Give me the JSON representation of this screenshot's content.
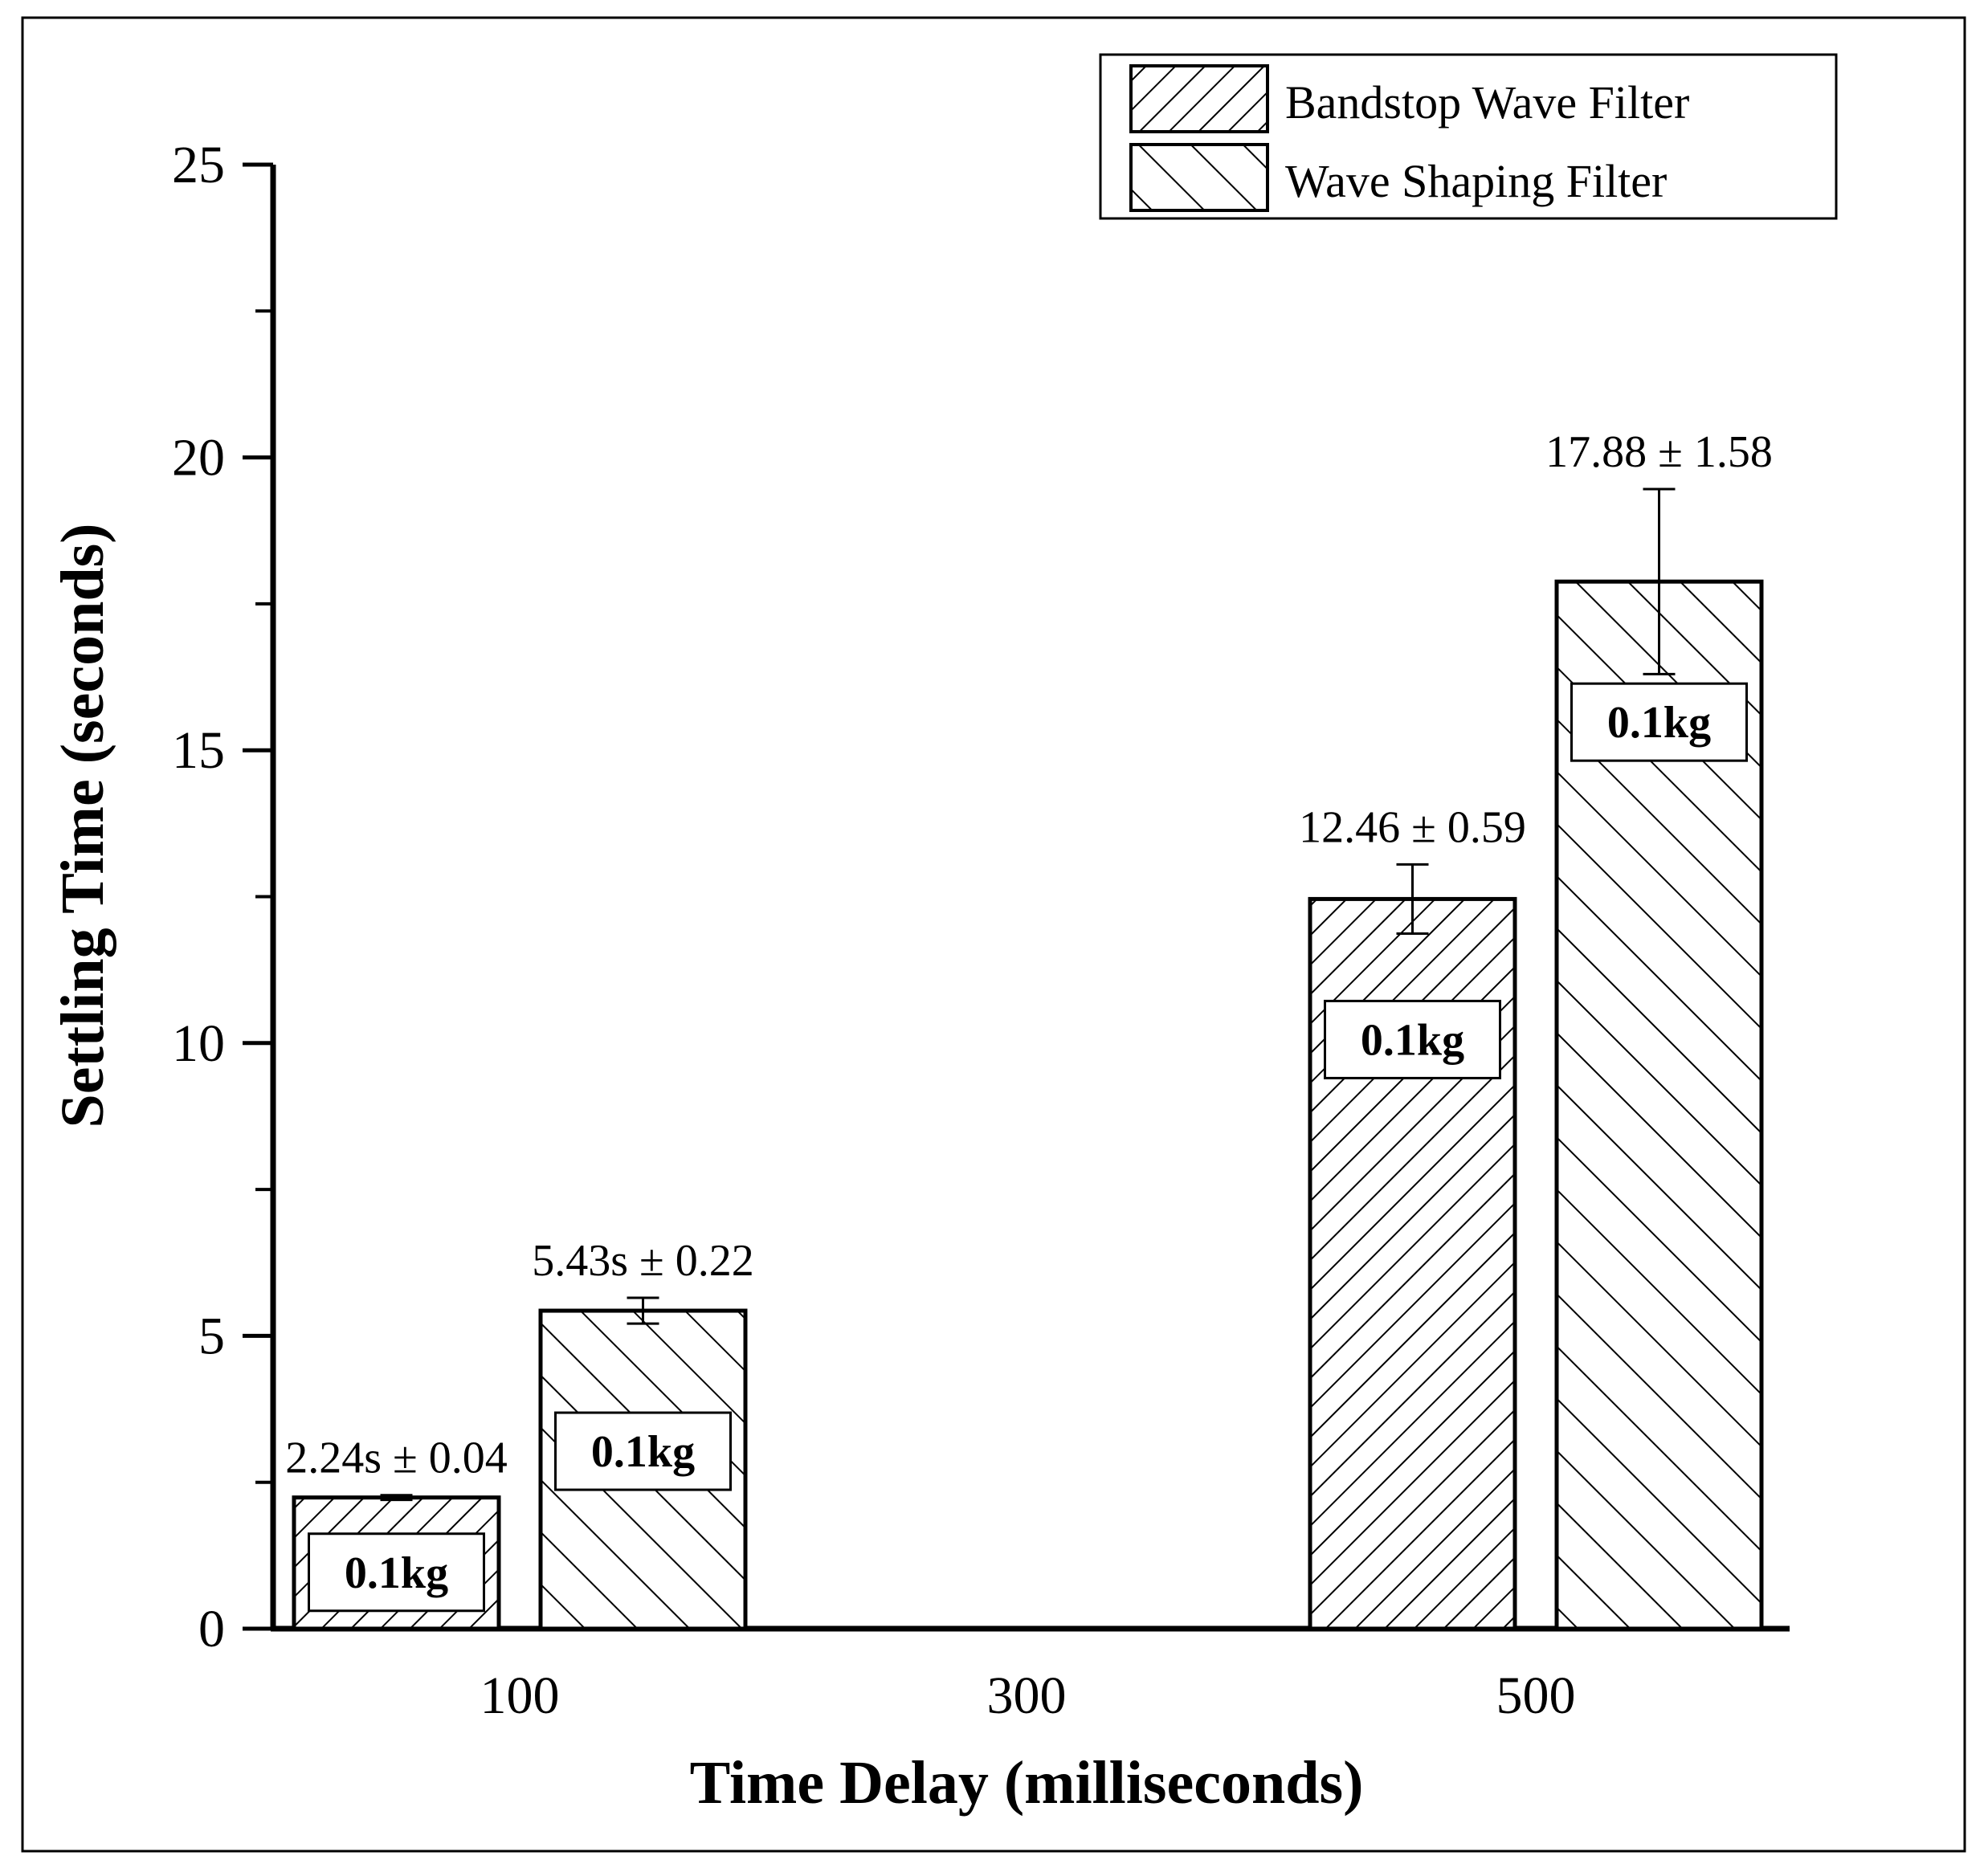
{
  "chart_data": {
    "type": "bar",
    "categories": [
      "100",
      "300",
      "500"
    ],
    "series": [
      {
        "name": "Bandstop Wave Filter",
        "pattern": "hatch-forward",
        "values": [
          2.24,
          0,
          12.46
        ],
        "errors": [
          0.04,
          0,
          0.59
        ],
        "labels": [
          "2.24s ± 0.04",
          "",
          "12.46 ± 0.59"
        ],
        "mass_labels": [
          "0.1kg",
          "",
          "0.1kg"
        ]
      },
      {
        "name": "Wave Shaping Filter",
        "pattern": "hatch-back",
        "values": [
          5.43,
          0,
          17.88
        ],
        "errors": [
          0.22,
          0,
          1.58
        ],
        "labels": [
          "5.43s ± 0.22",
          "",
          "17.88 ± 1.58"
        ],
        "mass_labels": [
          "0.1kg",
          "",
          "0.1kg"
        ]
      }
    ],
    "title": "",
    "xlabel": "Time Delay (milliseconds)",
    "ylabel": "Settling Time (seconds)",
    "ylim": [
      0,
      25
    ],
    "yticks": [
      0,
      5,
      10,
      15,
      20,
      25
    ],
    "legend_position": "top-right",
    "colors": {
      "stroke": "#000000",
      "fill": "#ffffff"
    }
  }
}
